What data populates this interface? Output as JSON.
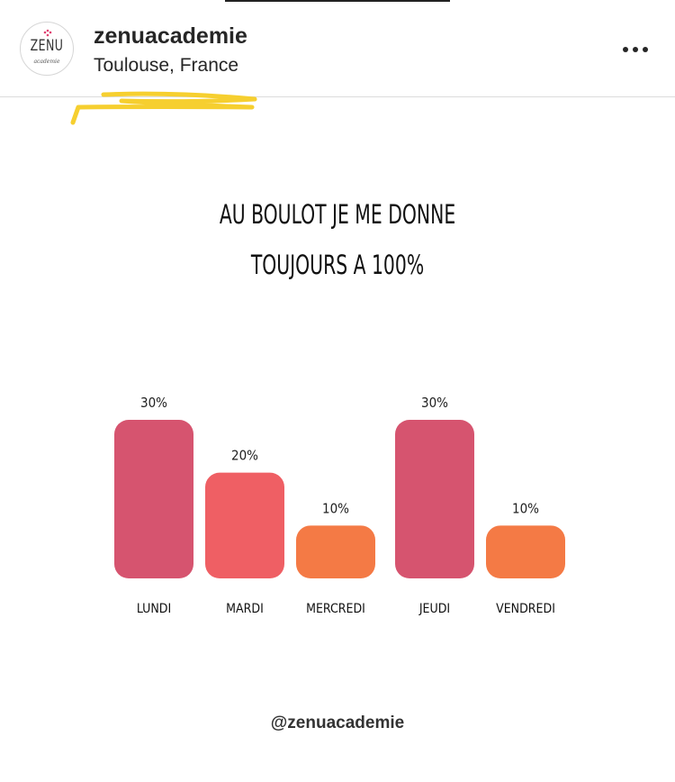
{
  "header": {
    "avatar_name": "ZENU",
    "avatar_sub": "academie",
    "username": "zenuacademie",
    "location": "Toulouse, France",
    "more_icon": "more-horizontal-icon"
  },
  "post": {
    "title_line1": "AU BOULOT JE ME DONNE",
    "title_line2": "TOUJOURS A 100%",
    "handle": "@zenuacademie",
    "accent_yellow": "#f6cf2f"
  },
  "chart_data": {
    "type": "bar",
    "categories": [
      "LUNDI",
      "MARDI",
      "MERCREDI",
      "JEUDI",
      "VENDREDI"
    ],
    "values": [
      30,
      20,
      10,
      30,
      10
    ],
    "value_labels": [
      "30%",
      "20%",
      "10%",
      "30%",
      "10%"
    ],
    "colors": [
      "#d6546f",
      "#ef5f64",
      "#f47a45",
      "#d6546f",
      "#f47a45"
    ],
    "ylim": [
      0,
      30
    ],
    "grid": false,
    "legend": "none"
  }
}
